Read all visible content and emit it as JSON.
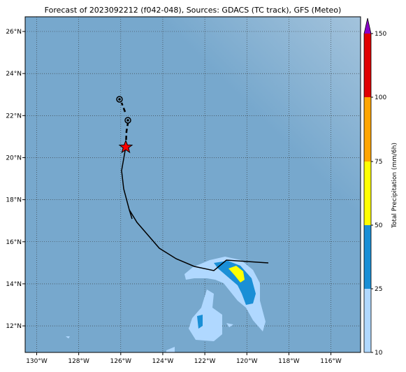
{
  "title": "Forecast of 2023092212 (f042-048), Sources: GDACS (TC track), GFS (Meteo)",
  "lat_labels": [
    "26°N",
    "24°N",
    "22°N",
    "20°N",
    "18°N",
    "16°N",
    "14°N",
    "12°N"
  ],
  "lon_labels": [
    "130°W",
    "128°W",
    "126°W",
    "124°W",
    "122°W",
    "120°W",
    "118°W",
    "116°W"
  ],
  "colorbar": {
    "label": "Total Precipitation (mm/6h)",
    "ticks": [
      "10",
      "25",
      "50",
      "75",
      "100",
      "150"
    ]
  }
}
